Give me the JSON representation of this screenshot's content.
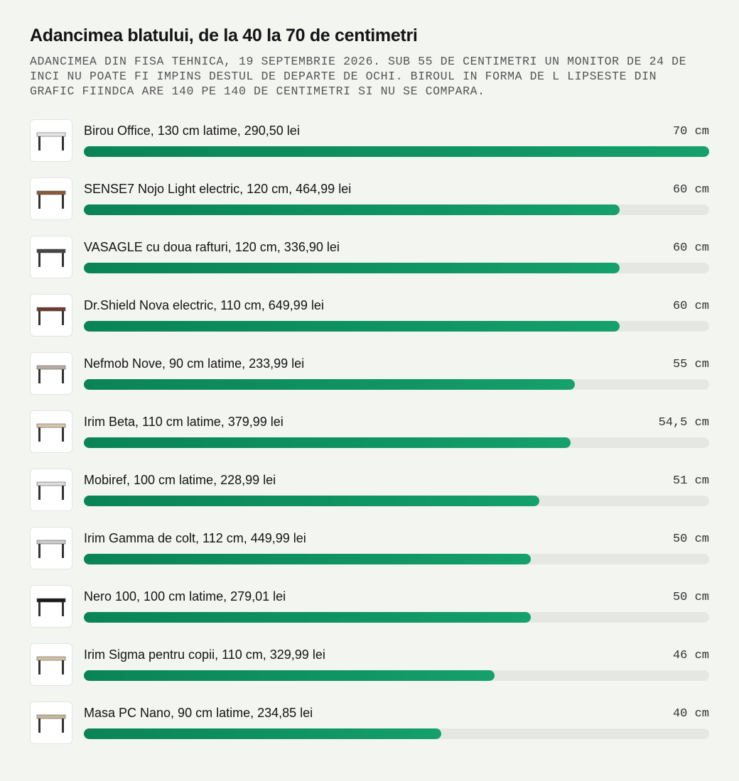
{
  "chart_data": {
    "type": "bar",
    "title": "Adancimea blatului, de la 40 la 70 de centimetri",
    "subtitle": "ADANCIMEA DIN FISA TEHNICA, 19 SEPTEMBRIE 2026. SUB 55 DE CENTIMETRI UN MONITOR DE 24 DE INCI NU POATE FI IMPINS DESTUL DE DEPARTE DE OCHI. BIROUL IN FORMA DE L LIPSESTE DIN GRAFIC FIINDCA ARE 140 PE 140 DE CENTIMETRI SI NU SE COMPARA.",
    "categories": [
      "Birou Office, 130 cm latime, 290,50 lei",
      "SENSE7 Nojo Light electric, 120 cm, 464,99 lei",
      "VASAGLE cu doua rafturi, 120 cm, 336,90 lei",
      "Dr.Shield Nova electric, 110 cm, 649,99 lei",
      "Nefmob Nove, 90 cm latime, 233,99 lei",
      "Irim Beta, 110 cm latime, 379,99 lei",
      "Mobiref, 100 cm latime, 228,99 lei",
      "Irim Gamma de colt, 112 cm, 449,99 lei",
      "Nero 100, 100 cm latime, 279,01 lei",
      "Irim Sigma pentru copii, 110 cm, 329,99 lei",
      "Masa PC Nano, 90 cm latime, 234,85 lei"
    ],
    "values": [
      70,
      60,
      60,
      60,
      55,
      54.5,
      51,
      50,
      50,
      46,
      40
    ],
    "value_labels": [
      "70 cm",
      "60 cm",
      "60 cm",
      "60 cm",
      "55 cm",
      "54,5 cm",
      "51 cm",
      "50 cm",
      "50 cm",
      "46 cm",
      "40 cm"
    ],
    "xlim": [
      0,
      70
    ],
    "color": "#0f9463"
  }
}
